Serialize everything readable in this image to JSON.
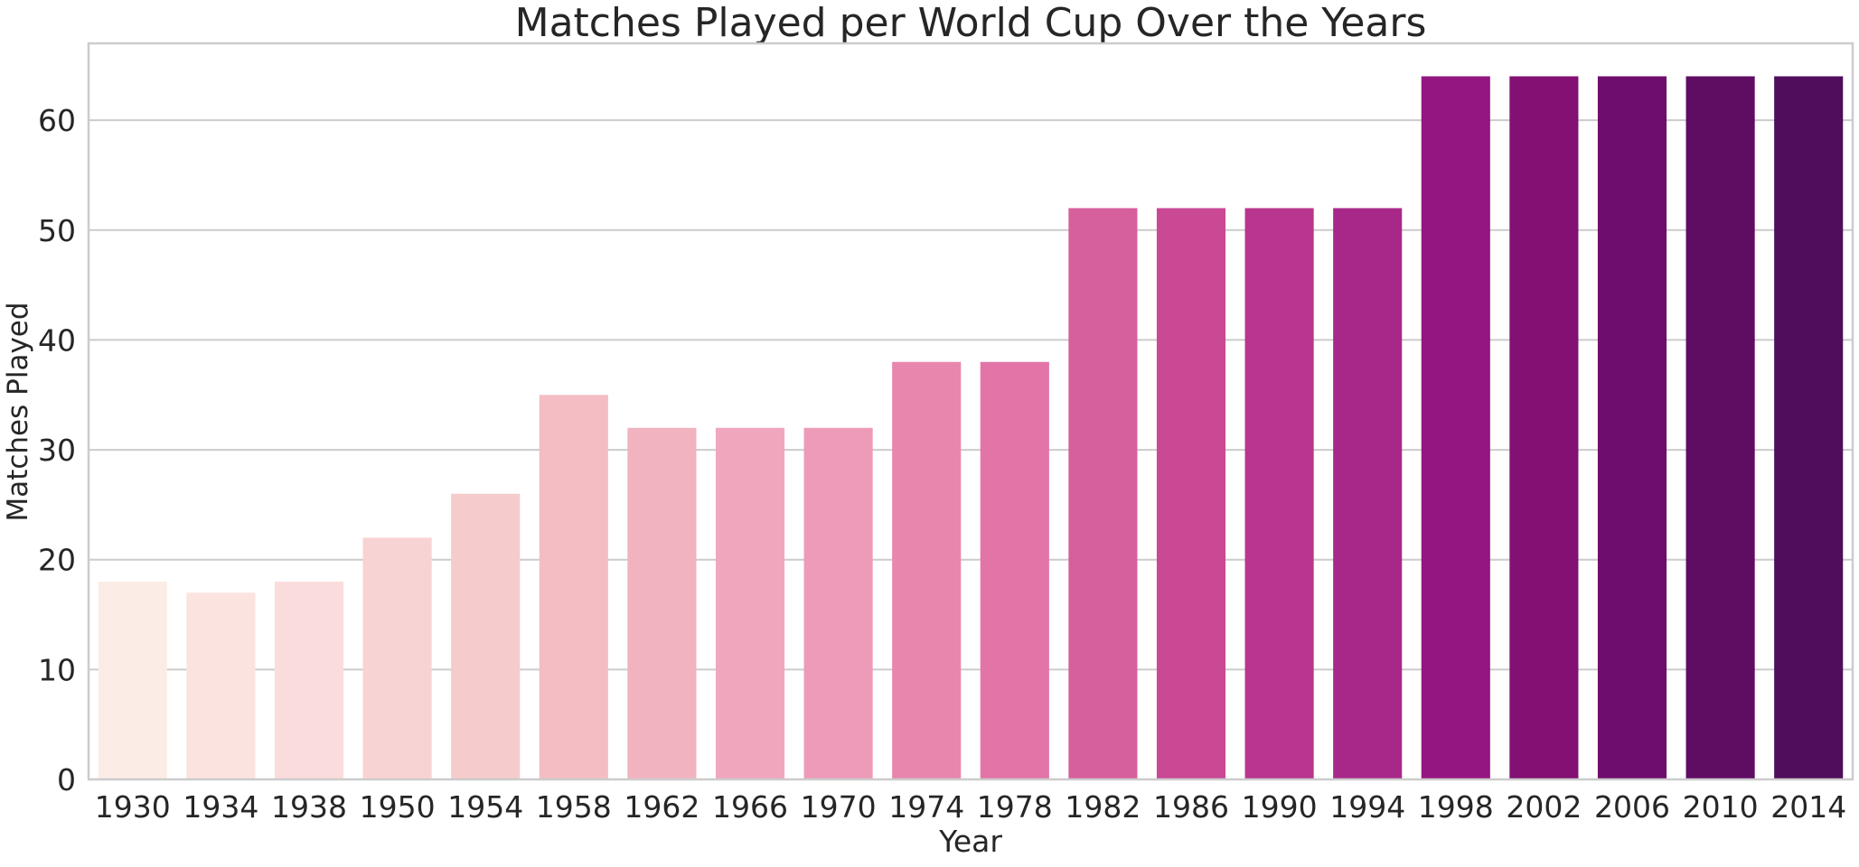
{
  "chart_data": {
    "type": "bar",
    "title": "Matches Played per World Cup Over the Years",
    "xlabel": "Year",
    "ylabel": "Matches Played",
    "categories": [
      "1930",
      "1934",
      "1938",
      "1950",
      "1954",
      "1958",
      "1962",
      "1966",
      "1970",
      "1974",
      "1978",
      "1982",
      "1986",
      "1990",
      "1994",
      "1998",
      "2002",
      "2006",
      "2010",
      "2014"
    ],
    "values": [
      18,
      17,
      18,
      22,
      26,
      35,
      32,
      32,
      32,
      38,
      38,
      52,
      52,
      52,
      52,
      64,
      64,
      64,
      64,
      64
    ],
    "ylim": [
      0,
      67
    ],
    "yticks": [
      "0",
      "10",
      "20",
      "30",
      "40",
      "50",
      "60"
    ],
    "grid": "horizontal",
    "colors": [
      "#fcece6",
      "#fbe3e0",
      "#f9dcdb",
      "#f8d3d3",
      "#f6cbcc",
      "#f4bdc4",
      "#f2b3c0",
      "#f0a7bd",
      "#ee9ab9",
      "#e886ae",
      "#e274a7",
      "#d65f9d",
      "#c94995",
      "#b8368e",
      "#a8288a",
      "#941681",
      "#821173",
      "#6e0d6b",
      "#5f0c63",
      "#4f0d5c"
    ]
  }
}
